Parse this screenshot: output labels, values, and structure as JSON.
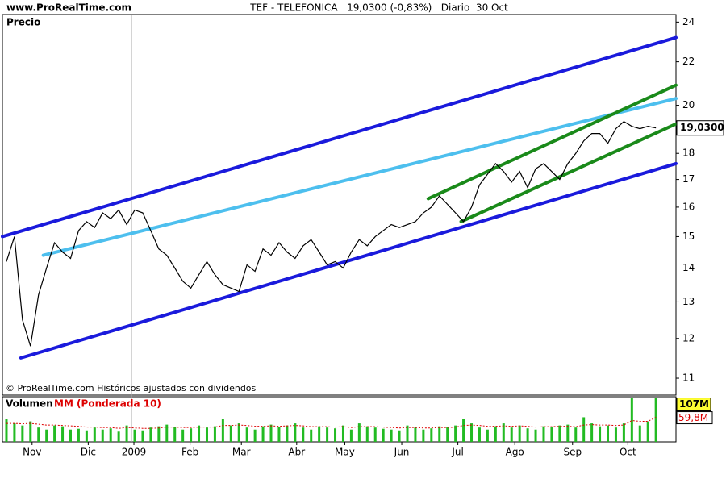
{
  "chart_data": {
    "type": "line",
    "site": "www.ProRealTime.com",
    "header": "TEF - TELEFONICA   19,0300 (-0,83%)   Diario  30 Oct",
    "panel_label": "Precio",
    "footer": "© ProRealTime.com Históricos ajustados con dividendos",
    "log_scale": true,
    "color": "#000000",
    "values": [
      14.2,
      15.0,
      12.5,
      11.8,
      13.2,
      14.0,
      14.8,
      14.5,
      14.3,
      15.2,
      15.5,
      15.3,
      15.8,
      15.6,
      15.9,
      15.4,
      15.9,
      15.8,
      15.2,
      14.6,
      14.4,
      14.0,
      13.6,
      13.4,
      13.8,
      14.2,
      13.8,
      13.5,
      13.4,
      13.3,
      14.1,
      13.9,
      14.6,
      14.4,
      14.8,
      14.5,
      14.3,
      14.7,
      14.9,
      14.5,
      14.1,
      14.2,
      14.0,
      14.5,
      14.9,
      14.7,
      15.0,
      15.2,
      15.4,
      15.3,
      15.4,
      15.5,
      15.8,
      16.0,
      16.4,
      16.1,
      15.8,
      15.5,
      16.0,
      16.8,
      17.2,
      17.6,
      17.3,
      16.9,
      17.3,
      16.7,
      17.4,
      17.6,
      17.3,
      17.0,
      17.6,
      18.0,
      18.5,
      18.8,
      18.8,
      18.4,
      19.0,
      19.3,
      19.1,
      19.0,
      19.1,
      19.03
    ],
    "last_price": {
      "value": 19.03,
      "label": "19,0300"
    },
    "xlim": [
      -0.5,
      83.5
    ],
    "ylim": [
      10.6,
      24.4
    ],
    "yticks": [
      11,
      12,
      13,
      14,
      15,
      16,
      17,
      18,
      20,
      22,
      24
    ],
    "xticks": [
      {
        "value": 3.2,
        "label": "Nov"
      },
      {
        "value": 10.2,
        "label": "Dic"
      },
      {
        "value": 15.9,
        "label": "2009"
      },
      {
        "value": 22.9,
        "label": "Feb"
      },
      {
        "value": 29.3,
        "label": "Mar"
      },
      {
        "value": 36.2,
        "label": "Abr"
      },
      {
        "value": 42.2,
        "label": "May"
      },
      {
        "value": 49.3,
        "label": "Jun"
      },
      {
        "value": 56.3,
        "label": "Jul"
      },
      {
        "value": 63.4,
        "label": "Ago"
      },
      {
        "value": 70.6,
        "label": "Sep"
      },
      {
        "value": 77.5,
        "label": "Oct"
      }
    ],
    "trend_lines": [
      {
        "color": "#1a1adc",
        "x": [
          -0.5,
          83.5
        ],
        "values": [
          15.0,
          23.2
        ]
      },
      {
        "color": "#1a1adc",
        "x": [
          1.8,
          83.5
        ],
        "values": [
          11.5,
          17.6
        ]
      },
      {
        "color": "#4dbfee",
        "x": [
          4.6,
          83.5
        ],
        "values": [
          14.4,
          20.3
        ]
      },
      {
        "color": "#1a8a1a",
        "x": [
          52.6,
          83.5
        ],
        "values": [
          16.3,
          20.9
        ]
      },
      {
        "color": "#1a8a1a",
        "x": [
          56.7,
          83.5
        ],
        "values": [
          15.5,
          19.2
        ]
      }
    ],
    "volume": {
      "label": "Volumen",
      "ma_label": "MM (Ponderada 10)",
      "color": "#22bb22",
      "ma_color": "#dd0000",
      "ylim": [
        0,
        110
      ],
      "values": [
        55,
        45,
        40,
        50,
        35,
        30,
        40,
        38,
        30,
        32,
        28,
        35,
        30,
        33,
        25,
        40,
        30,
        28,
        35,
        38,
        42,
        36,
        30,
        33,
        40,
        35,
        38,
        55,
        40,
        45,
        35,
        30,
        38,
        42,
        36,
        40,
        45,
        35,
        30,
        38,
        35,
        33,
        40,
        30,
        45,
        38,
        35,
        32,
        30,
        28,
        40,
        35,
        30,
        33,
        38,
        36,
        40,
        55,
        45,
        35,
        30,
        38,
        45,
        35,
        40,
        33,
        30,
        38,
        36,
        40,
        42,
        35,
        60,
        45,
        38,
        40,
        35,
        45,
        107,
        40,
        50,
        107
      ],
      "ma": [
        45,
        45,
        44,
        45,
        43,
        41,
        41,
        40,
        39,
        38,
        36,
        36,
        35,
        35,
        33,
        35,
        34,
        33,
        33,
        34,
        36,
        36,
        35,
        35,
        36,
        36,
        36,
        40,
        40,
        41,
        40,
        38,
        38,
        39,
        38,
        39,
        40,
        39,
        37,
        37,
        37,
        36,
        37,
        35,
        37,
        37,
        37,
        36,
        35,
        34,
        35,
        35,
        34,
        34,
        35,
        35,
        36,
        40,
        41,
        40,
        38,
        38,
        39,
        38,
        39,
        38,
        36,
        37,
        37,
        38,
        38,
        37,
        41,
        42,
        41,
        41,
        40,
        41,
        52,
        50,
        50,
        59.8
      ],
      "max_label": {
        "value": 107,
        "label": "107M"
      },
      "ma_last": {
        "value": 59.8,
        "label": "59,8M"
      }
    }
  }
}
